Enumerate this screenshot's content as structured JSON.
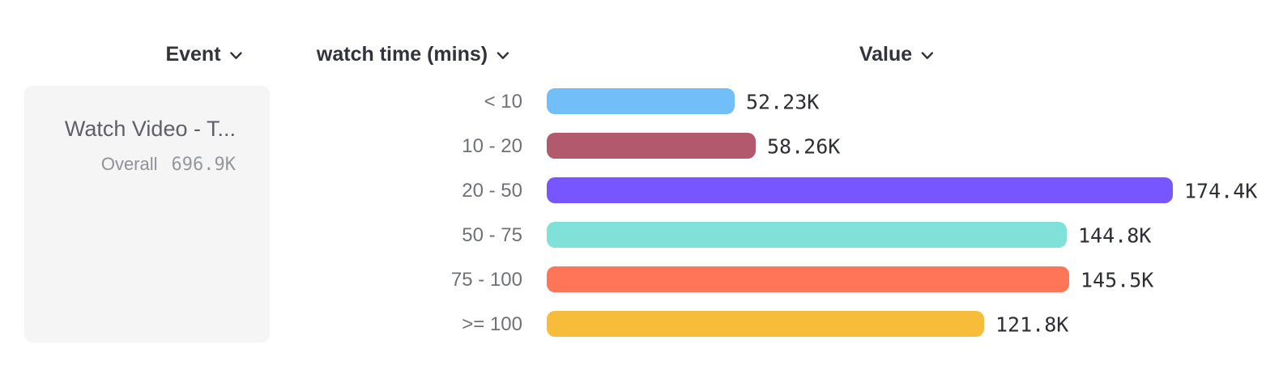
{
  "header": {
    "columns": [
      {
        "label": "Event"
      },
      {
        "label": "watch time (mins)"
      },
      {
        "label": "Value"
      }
    ],
    "dropdown_icon": "chevron-down-icon"
  },
  "event_card": {
    "name": "Watch Video - T...",
    "overall_label": "Overall",
    "overall_value": "696.9K",
    "background": "#F5F5F6"
  },
  "chart_data": {
    "type": "bar",
    "orientation": "horizontal",
    "title": "",
    "xlabel": "Value",
    "ylabel": "watch time (mins)",
    "categories": [
      "< 10",
      "10 - 20",
      "20 - 50",
      "50 - 75",
      "75 - 100",
      ">= 100"
    ],
    "values": [
      52230,
      58260,
      174400,
      144800,
      145500,
      121800
    ],
    "value_labels": [
      "52.23K",
      "58.26K",
      "174.4K",
      "144.8K",
      "145.5K",
      "121.8K"
    ],
    "colors": [
      "#72BEF8",
      "#B2596E",
      "#7856FF",
      "#80E1D9",
      "#FF7557",
      "#F8BC3B"
    ],
    "xlim": [
      0,
      174400
    ],
    "grid": false,
    "legend": "none"
  },
  "text_colors": {
    "header": "#32333B",
    "category": "#6F7176",
    "value": "#2E2F34"
  }
}
